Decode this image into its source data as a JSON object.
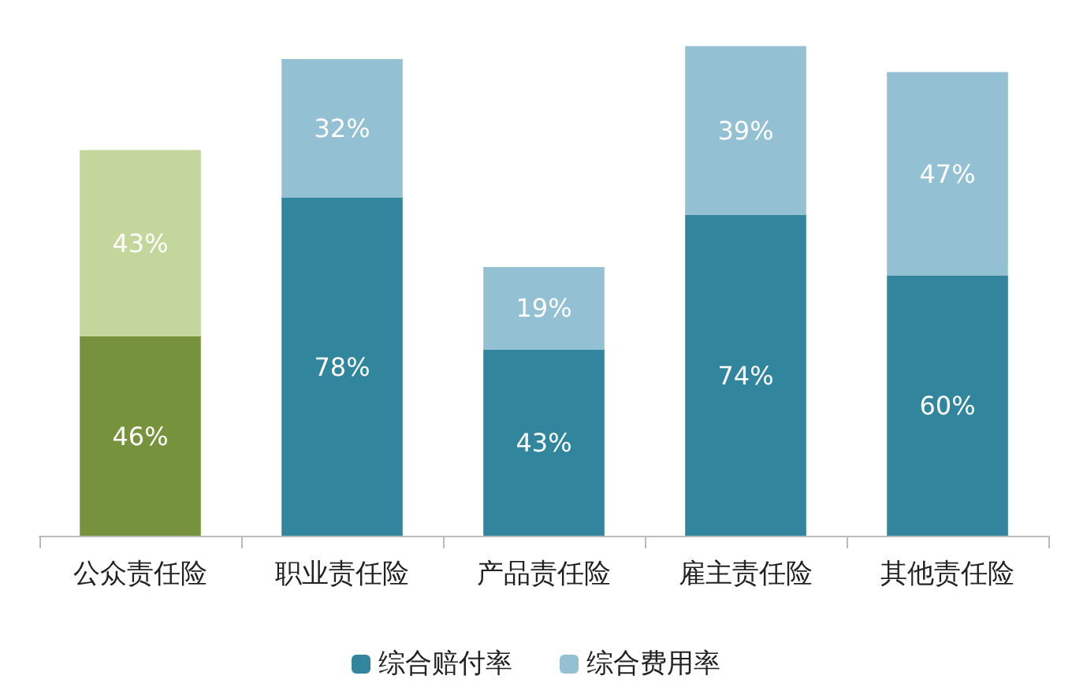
{
  "chart_data": {
    "type": "bar",
    "stacked": true,
    "legend": "bottom",
    "grid": false,
    "categories": [
      "公众责任险",
      "职业责任险",
      "产品责任险",
      "雇主责任险",
      "其他责任险"
    ],
    "series": [
      {
        "name": "综合赔付率",
        "color": "#31859c",
        "colors": [
          "#77923c",
          "#31859c",
          "#31859c",
          "#31859c",
          "#31859c"
        ],
        "values": [
          46,
          78,
          43,
          74,
          60
        ],
        "value_labels": [
          "46%",
          "78%",
          "43%",
          "74%",
          "60%"
        ]
      },
      {
        "name": "综合费用率",
        "color": "#93c0d3",
        "colors": [
          "#c3d69b",
          "#93c0d3",
          "#93c0d3",
          "#93c0d3",
          "#93c0d3"
        ],
        "values": [
          43,
          32,
          19,
          39,
          47
        ],
        "value_labels": [
          "43%",
          "32%",
          "19%",
          "39%",
          "47%"
        ]
      }
    ]
  }
}
